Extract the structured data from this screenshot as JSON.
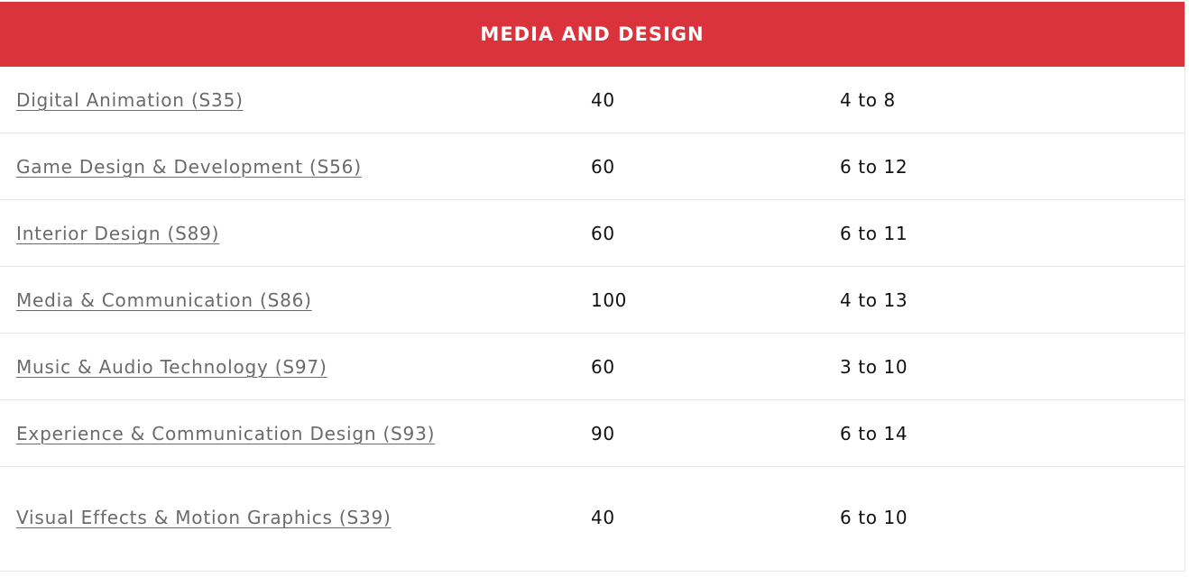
{
  "table": {
    "header": "MEDIA AND DESIGN",
    "rows": [
      {
        "program": "Digital Animation (S35)",
        "seats": "40",
        "range": "4 to 8"
      },
      {
        "program": "Game Design & Development (S56)",
        "seats": "60",
        "range": "6 to 12"
      },
      {
        "program": "Interior Design (S89)",
        "seats": "60",
        "range": "6 to 11"
      },
      {
        "program": "Media & Communication (S86)",
        "seats": "100",
        "range": "4 to 13"
      },
      {
        "program": "Music & Audio Technology (S97)",
        "seats": "60",
        "range": "3 to 10"
      },
      {
        "program": "Experience & Communication Design (S93)",
        "seats": "90",
        "range": "6 to 14"
      },
      {
        "program": "Visual Effects & Motion Graphics (S39)",
        "seats": "40",
        "range": "6 to 10"
      }
    ]
  },
  "colors": {
    "header_bg": "#db333b",
    "header_text": "#ffffff",
    "link_text": "#6a6a6a",
    "body_text": "#111111",
    "divider": "#e6e6e6"
  }
}
